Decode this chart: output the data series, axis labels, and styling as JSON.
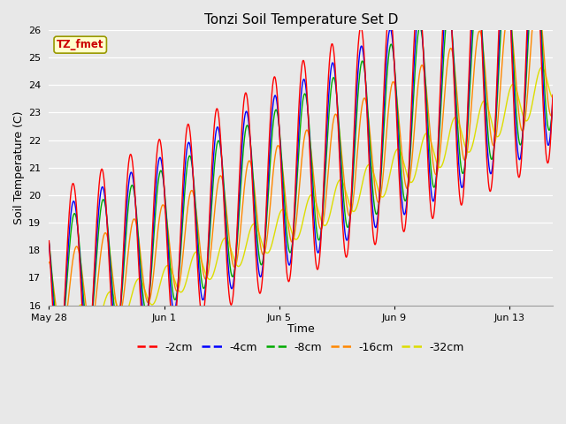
{
  "title": "Tonzi Soil Temperature Set D",
  "xlabel": "Time",
  "ylabel": "Soil Temperature (C)",
  "ylim": [
    16.0,
    26.0
  ],
  "yticks": [
    16.0,
    17.0,
    18.0,
    19.0,
    20.0,
    21.0,
    22.0,
    23.0,
    24.0,
    25.0,
    26.0
  ],
  "line_colors": {
    "-2cm": "#ff0000",
    "-4cm": "#0000ff",
    "-8cm": "#00aa00",
    "-16cm": "#ff8800",
    "-32cm": "#dddd00"
  },
  "annotation_text": "TZ_fmet",
  "annotation_color": "#cc0000",
  "annotation_bg": "#ffffcc",
  "annotation_border": "#999900",
  "fig_bg": "#e8e8e8",
  "plot_bg": "#e8e8e8",
  "x_tick_labels": [
    "May 28",
    "Jun 1",
    "Jun 5",
    "Jun 9",
    "Jun 13"
  ],
  "x_tick_days": [
    0,
    4,
    8,
    12,
    16
  ],
  "xlim": [
    0,
    17.5
  ],
  "total_days": 17.5
}
